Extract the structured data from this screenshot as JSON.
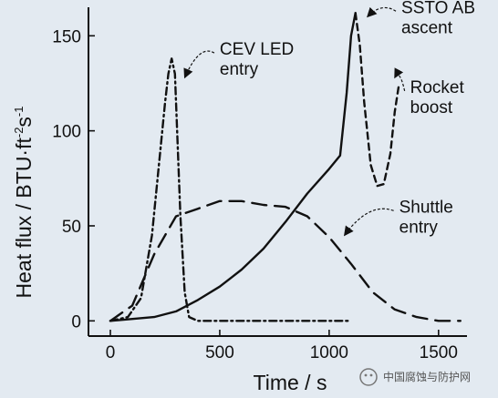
{
  "chart_data": {
    "type": "line",
    "xlabel": "Time / s",
    "ylabel_parts": {
      "main": "Heat flux / BTU·ft",
      "exp1": "-2",
      "mid": "s",
      "exp2": "-1"
    },
    "xlim": [
      -100,
      1630
    ],
    "ylim": [
      -8,
      165
    ],
    "xticks": [
      0,
      500,
      1000,
      1500
    ],
    "yticks": [
      0,
      50,
      100,
      150
    ],
    "grid": false,
    "series": [
      {
        "id": "cev",
        "style": "dashdot",
        "points": [
          [
            0,
            0
          ],
          [
            80,
            2
          ],
          [
            140,
            12
          ],
          [
            190,
            45
          ],
          [
            220,
            80
          ],
          [
            250,
            115
          ],
          [
            265,
            130
          ],
          [
            280,
            138
          ],
          [
            295,
            130
          ],
          [
            305,
            100
          ],
          [
            320,
            55
          ],
          [
            340,
            15
          ],
          [
            360,
            2
          ],
          [
            400,
            0
          ],
          [
            1100,
            0
          ]
        ]
      },
      {
        "id": "shuttle",
        "style": "dash",
        "points": [
          [
            0,
            0
          ],
          [
            100,
            8
          ],
          [
            200,
            35
          ],
          [
            300,
            55
          ],
          [
            400,
            59
          ],
          [
            500,
            63
          ],
          [
            600,
            63
          ],
          [
            700,
            61
          ],
          [
            800,
            60
          ],
          [
            900,
            55
          ],
          [
            1000,
            44
          ],
          [
            1100,
            30
          ],
          [
            1200,
            15
          ],
          [
            1300,
            6
          ],
          [
            1400,
            2
          ],
          [
            1500,
            0
          ],
          [
            1600,
            0
          ]
        ]
      },
      {
        "id": "ssto",
        "style": "solid",
        "points": [
          [
            0,
            0
          ],
          [
            200,
            2
          ],
          [
            300,
            5
          ],
          [
            400,
            11
          ],
          [
            500,
            18
          ],
          [
            600,
            27
          ],
          [
            700,
            38
          ],
          [
            800,
            52
          ],
          [
            900,
            67
          ],
          [
            1000,
            80
          ],
          [
            1050,
            87
          ],
          [
            1080,
            120
          ],
          [
            1100,
            150
          ],
          [
            1120,
            162
          ]
        ]
      },
      {
        "id": "rocket",
        "style": "shortdash",
        "points": [
          [
            1120,
            162
          ],
          [
            1140,
            145
          ],
          [
            1160,
            115
          ],
          [
            1190,
            82
          ],
          [
            1220,
            71
          ],
          [
            1250,
            72
          ],
          [
            1280,
            88
          ],
          [
            1300,
            110
          ],
          [
            1320,
            125
          ]
        ]
      }
    ],
    "annotations": [
      {
        "id": "cev",
        "lines": [
          "CEV LED",
          "entry"
        ],
        "x": 500,
        "y": 140,
        "ax": 340,
        "ay": 128
      },
      {
        "id": "ssto",
        "lines": [
          "SSTO AB",
          "ascent"
        ],
        "x": 1330,
        "y": 162,
        "ax": 1175,
        "ay": 160
      },
      {
        "id": "rocket",
        "lines": [
          "Rocket",
          "boost"
        ],
        "x": 1370,
        "y": 120,
        "ax": 1300,
        "ay": 128
      },
      {
        "id": "shuttle",
        "lines": [
          "Shuttle",
          "entry"
        ],
        "x": 1320,
        "y": 57,
        "ax": 1070,
        "ay": 45
      }
    ]
  },
  "watermark": "中国腐蚀与防护网"
}
